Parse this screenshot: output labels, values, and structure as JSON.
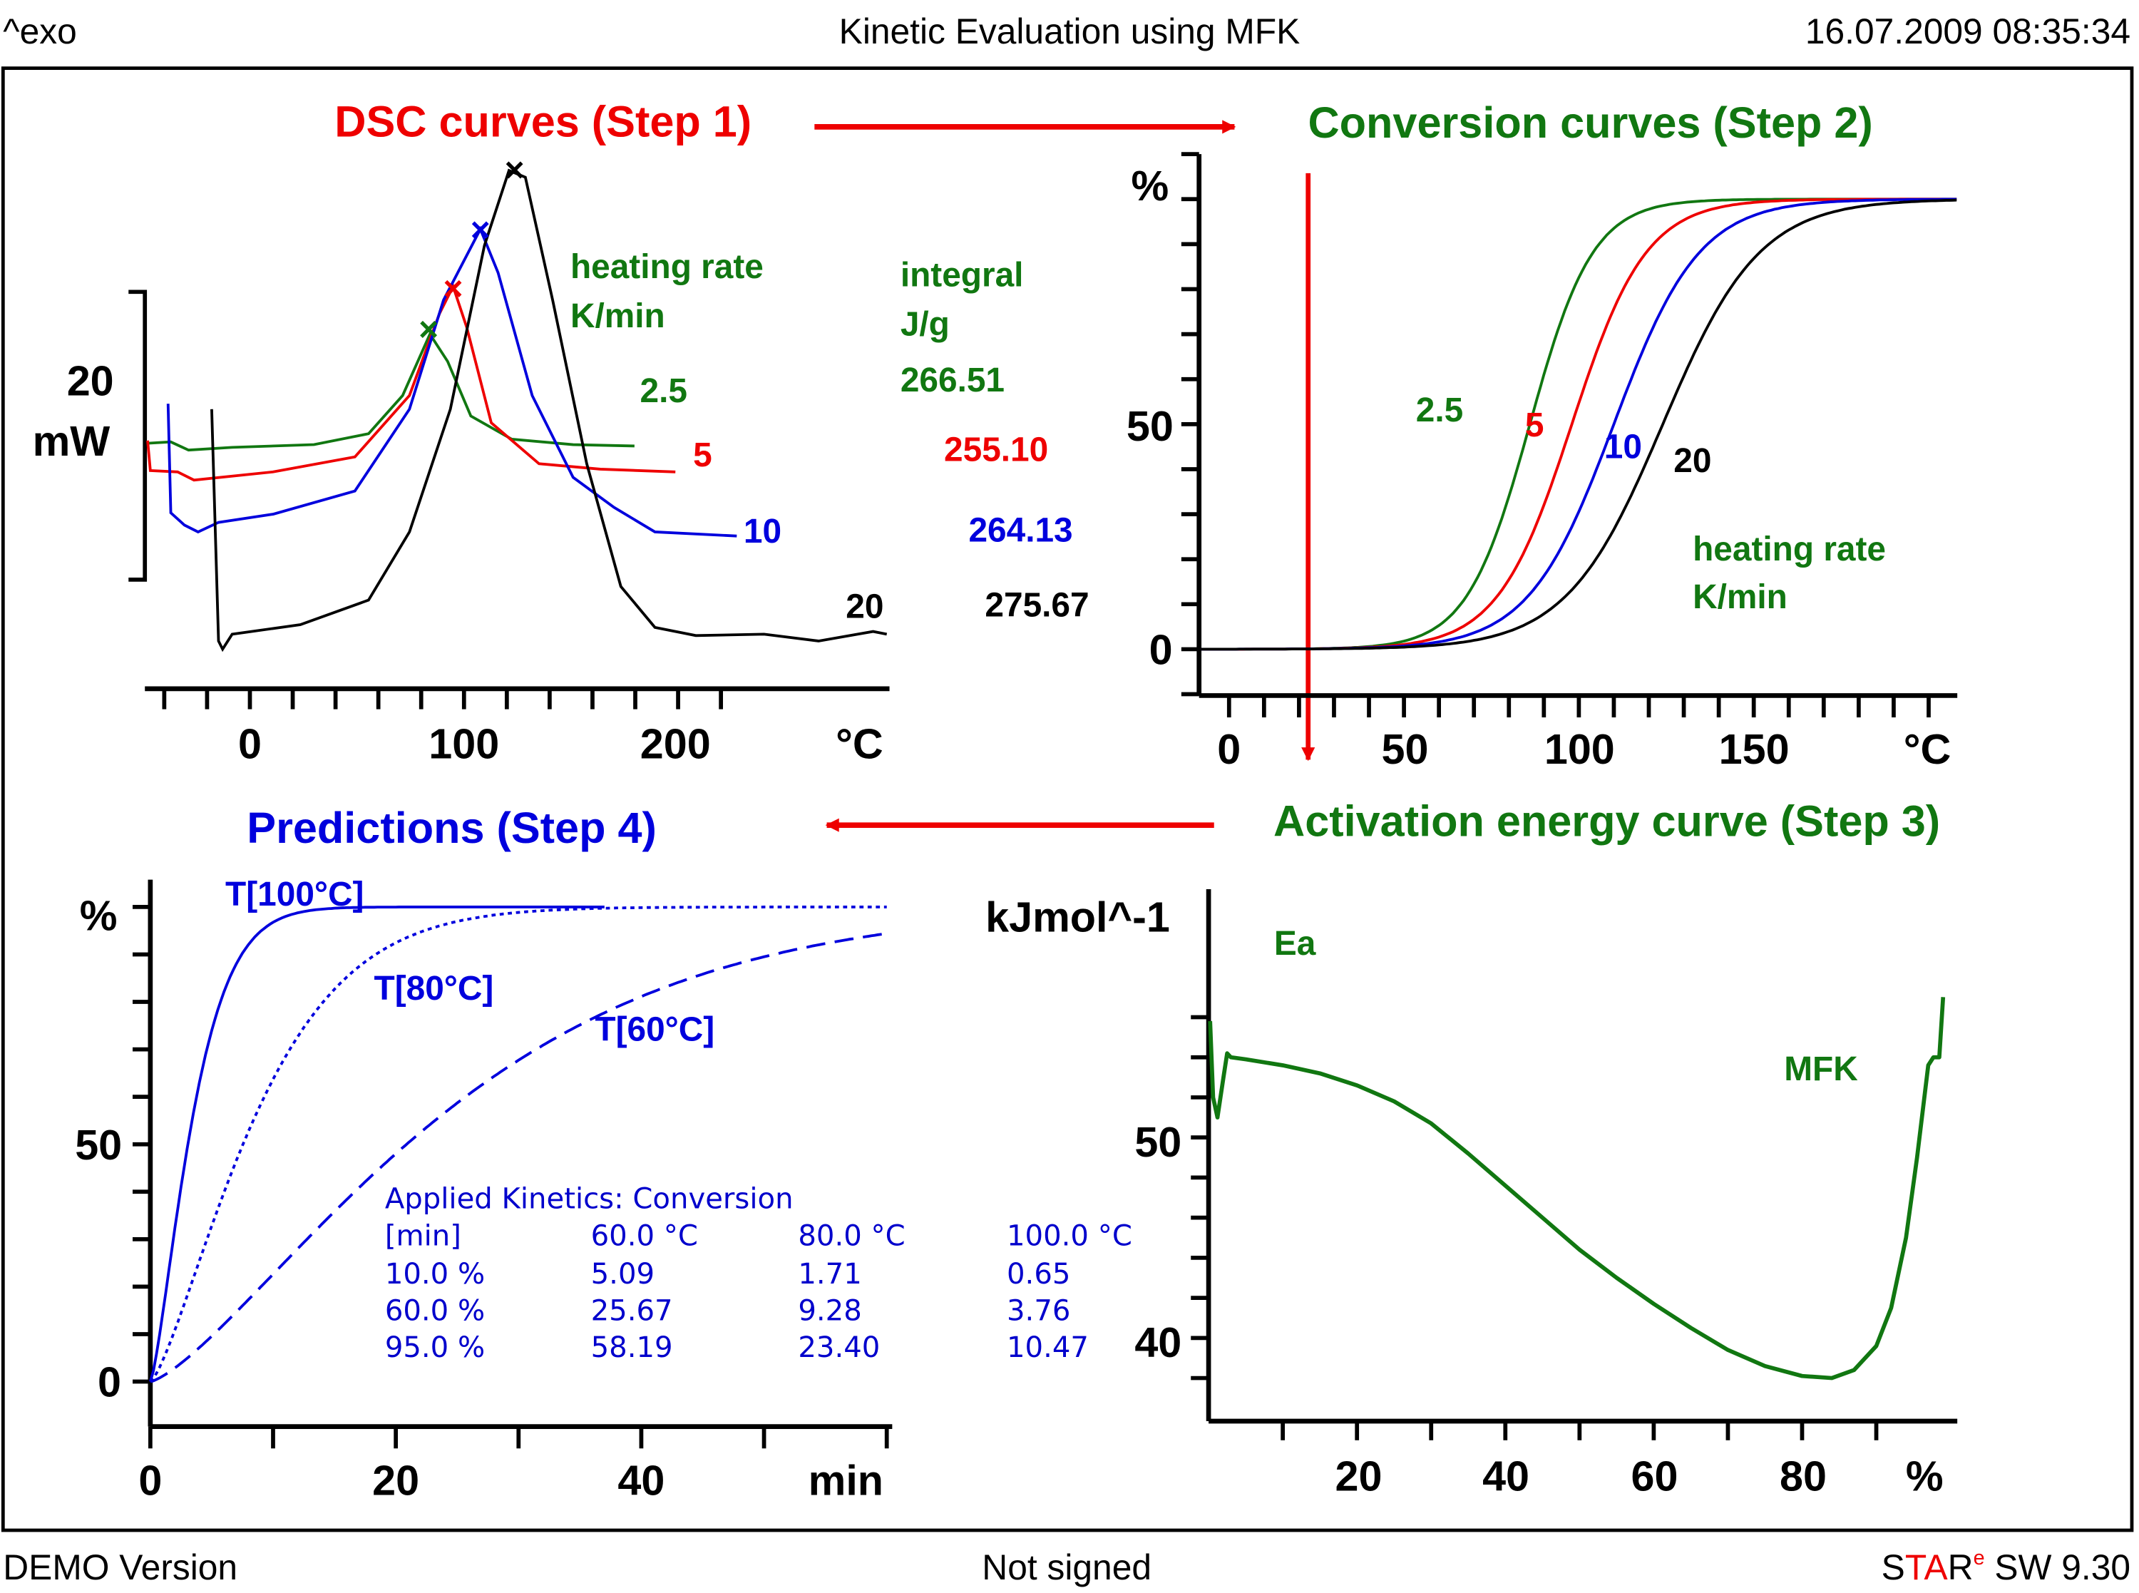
{
  "header": {
    "left": "^exo",
    "title": "Kinetic Evaluation using MFK",
    "datetime": "16.07.2009 08:35:34"
  },
  "footer": {
    "left": "DEMO Version",
    "center": "Not signed",
    "logo": {
      "s": "S",
      "ta": "TA",
      "r": "R",
      "e": "e",
      "rest": " SW 9.30"
    }
  },
  "colors": {
    "green": "#117711",
    "red": "#ee0000",
    "blue": "#0000dd",
    "black": "#000000"
  },
  "titles": {
    "step1": "DSC curves  (Step 1)",
    "step2": "Conversion curves (Step 2)",
    "step3": "Activation energy curve (Step 3)",
    "step4": "Predictions (Step 4)"
  },
  "chart_data": [
    {
      "type": "line",
      "title": "DSC curves  (Step 1)",
      "xlabel": "°C",
      "ylabel": "mW",
      "scale_bar": {
        "value": "20",
        "unit": "mW"
      },
      "xlim": [
        -45,
        225
      ],
      "x_ticks": [
        "0",
        "100",
        "200"
      ],
      "legend_heading": [
        "heating rate",
        "K/min"
      ],
      "integral_heading": [
        "integral",
        "J/g"
      ],
      "series": [
        {
          "name": "2.5",
          "color": "green",
          "integral": "266.51",
          "peak_x": 85
        },
        {
          "name": "5",
          "color": "red",
          "integral": "255.10",
          "peak_x": 98
        },
        {
          "name": "10",
          "color": "blue",
          "integral": "264.13",
          "peak_x": 110
        },
        {
          "name": "20",
          "color": "black",
          "integral": "275.67",
          "peak_x": 126
        }
      ]
    },
    {
      "type": "line",
      "title": "Conversion curves (Step 2)",
      "xlabel": "°C",
      "ylabel": "%",
      "xlim": [
        -8,
        208
      ],
      "ylim": [
        0,
        100
      ],
      "x_ticks": [
        "0",
        "50",
        "100",
        "150"
      ],
      "y_ticks": [
        "0",
        "50"
      ],
      "legend_heading": [
        "heating rate",
        "K/min"
      ],
      "series": [
        {
          "name": "2.5",
          "color": "green",
          "t50": 86
        },
        {
          "name": "5",
          "color": "red",
          "t50": 98
        },
        {
          "name": "10",
          "color": "blue",
          "t50": 110
        },
        {
          "name": "20",
          "color": "black",
          "t50": 124
        }
      ]
    },
    {
      "type": "line",
      "title": "Activation energy curve (Step 3)",
      "xlabel": "%",
      "ylabel": "kJmol^-1",
      "xlim": [
        0,
        100
      ],
      "ylim": [
        36.5,
        57.5
      ],
      "x_ticks": [
        "20",
        "40",
        "60",
        "80"
      ],
      "y_ticks": [
        "40",
        "50"
      ],
      "labels": {
        "curve": "Ea",
        "method": "MFK"
      },
      "series": [
        {
          "name": "Ea",
          "color": "green",
          "points": [
            [
              0.2,
              55.8
            ],
            [
              0.6,
              52
            ],
            [
              1.2,
              51
            ],
            [
              2,
              53
            ],
            [
              2.5,
              54.2
            ],
            [
              3,
              54
            ],
            [
              5,
              53.9
            ],
            [
              10,
              53.6
            ],
            [
              15,
              53.2
            ],
            [
              20,
              52.6
            ],
            [
              25,
              51.8
            ],
            [
              30,
              50.7
            ],
            [
              35,
              49.2
            ],
            [
              40,
              47.6
            ],
            [
              45,
              46
            ],
            [
              50,
              44.4
            ],
            [
              55,
              43
            ],
            [
              60,
              41.7
            ],
            [
              65,
              40.5
            ],
            [
              70,
              39.4
            ],
            [
              75,
              38.6
            ],
            [
              80,
              38.1
            ],
            [
              84,
              38.0
            ],
            [
              87,
              38.4
            ],
            [
              90,
              39.6
            ],
            [
              92,
              41.5
            ],
            [
              94,
              45
            ],
            [
              95.5,
              49
            ],
            [
              97,
              53.6
            ],
            [
              97.7,
              54
            ],
            [
              98.5,
              54
            ],
            [
              99,
              57
            ]
          ]
        }
      ]
    },
    {
      "type": "line",
      "title": "Predictions (Step 4)",
      "xlabel": "min",
      "ylabel": "%",
      "xlim": [
        0,
        60
      ],
      "ylim": [
        0,
        100
      ],
      "x_ticks": [
        "0",
        "20",
        "40"
      ],
      "y_ticks": [
        "0",
        "50"
      ],
      "series": [
        {
          "name": "T[100°C]",
          "style": "solid",
          "t10": 0.65,
          "t60": 3.76,
          "t95": 10.47,
          "x_end": 37
        },
        {
          "name": "T[80°C]",
          "style": "dotted",
          "t10": 1.71,
          "t60": 9.28,
          "t95": 23.4,
          "x_end": 60
        },
        {
          "name": "T[60°C]",
          "style": "dashed",
          "t10": 5.09,
          "t60": 25.67,
          "t95": 58.19,
          "x_end": 60
        }
      ],
      "table": {
        "title": "Applied Kinetics: Conversion",
        "header": [
          "[min]",
          "60.0 °C",
          "80.0 °C",
          "100.0 °C"
        ],
        "rows": [
          [
            "10.0 %",
            "5.09",
            "1.71",
            "0.65"
          ],
          [
            "60.0 %",
            "25.67",
            "9.28",
            "3.76"
          ],
          [
            "95.0 %",
            "58.19",
            "23.40",
            "10.47"
          ]
        ]
      }
    }
  ]
}
